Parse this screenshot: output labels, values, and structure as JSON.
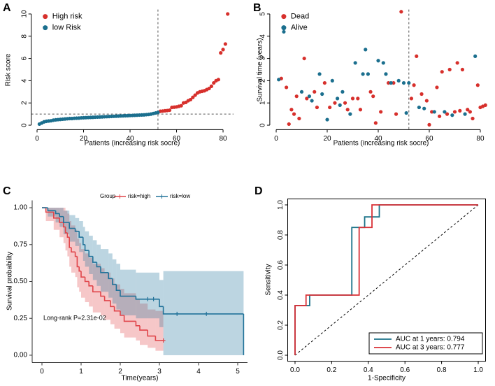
{
  "chart_data": [
    {
      "type": "scatter",
      "label": "A",
      "xlabel": "Patients (increasing risk socre)",
      "ylabel": "Risk score",
      "xlim": [
        -2.5,
        84.5
      ],
      "ylim": [
        -0.4,
        10.4
      ],
      "xticks": [
        0,
        20,
        40,
        60,
        80
      ],
      "yticks": [
        0,
        2,
        4,
        6,
        8,
        10
      ],
      "vline": 52,
      "hline": 1.0,
      "legend": "top-left",
      "series": [
        {
          "name": "High risk",
          "color": "#d7302c",
          "x": [
            53,
            54,
            55,
            56,
            57,
            58,
            59,
            60,
            61,
            62,
            63,
            64,
            65,
            66,
            67,
            68,
            69,
            70,
            71,
            72,
            73,
            74,
            75,
            76,
            77,
            78,
            79,
            80,
            81,
            82
          ],
          "values": [
            1.25,
            1.27,
            1.3,
            1.32,
            1.35,
            1.6,
            1.62,
            1.65,
            1.7,
            1.75,
            2.0,
            2.05,
            2.2,
            2.3,
            2.5,
            2.7,
            2.9,
            3.0,
            3.05,
            3.1,
            3.2,
            3.3,
            3.5,
            3.8,
            4.0,
            4.1,
            6.5,
            6.8,
            7.3,
            10
          ]
        },
        {
          "name": "low Risk",
          "color": "#1b6f8e",
          "x": [
            1,
            2,
            3,
            4,
            5,
            6,
            7,
            8,
            9,
            10,
            11,
            12,
            13,
            14,
            15,
            16,
            17,
            18,
            19,
            20,
            21,
            22,
            23,
            24,
            25,
            26,
            27,
            28,
            29,
            30,
            31,
            32,
            33,
            34,
            35,
            36,
            37,
            38,
            39,
            40,
            41,
            42,
            43,
            44,
            45,
            46,
            47,
            48,
            49,
            50,
            51,
            52
          ],
          "values": [
            0.1,
            0.2,
            0.3,
            0.35,
            0.38,
            0.4,
            0.45,
            0.48,
            0.5,
            0.52,
            0.54,
            0.56,
            0.58,
            0.6,
            0.6,
            0.62,
            0.63,
            0.64,
            0.66,
            0.67,
            0.68,
            0.69,
            0.7,
            0.71,
            0.72,
            0.73,
            0.74,
            0.75,
            0.76,
            0.77,
            0.78,
            0.79,
            0.8,
            0.81,
            0.82,
            0.83,
            0.84,
            0.85,
            0.86,
            0.87,
            0.88,
            0.89,
            0.9,
            0.91,
            0.92,
            0.93,
            0.95,
            0.97,
            1.0,
            1.05,
            1.1,
            1.15
          ]
        }
      ]
    },
    {
      "type": "scatter",
      "label": "B",
      "xlabel": "Patients (increasing risk socre)",
      "ylabel": "Survival time (years)",
      "xlim": [
        -2.5,
        84.5
      ],
      "ylim": [
        -0.2,
        5.2
      ],
      "xticks": [
        0,
        20,
        40,
        60,
        80
      ],
      "yticks": [
        0,
        1,
        2,
        3,
        4,
        5
      ],
      "vline": 52,
      "legend": "top-left",
      "series": [
        {
          "name": "Dead",
          "color": "#d7302c",
          "x": [
            2,
            4,
            5,
            6,
            7,
            8,
            9,
            11,
            12,
            15,
            16,
            19,
            21,
            23,
            27,
            28,
            30,
            32,
            33,
            37,
            38,
            39,
            41,
            44,
            46,
            47,
            49,
            53,
            54,
            55,
            57,
            59,
            60,
            61,
            63,
            64,
            65,
            67,
            68,
            70,
            71,
            72,
            73,
            75,
            76,
            77,
            79,
            80,
            81,
            82
          ],
          "values": [
            2.1,
            1.7,
            0.05,
            0.7,
            0.5,
            1.3,
            0.3,
            3.0,
            1.2,
            1.5,
            0.8,
            1.9,
            0.8,
            1.0,
            1.0,
            0.7,
            1.2,
            1.2,
            0.7,
            1.5,
            1.3,
            0.1,
            0.6,
            1.9,
            1.9,
            0.5,
            5.1,
            1.2,
            1.8,
            3.1,
            1.4,
            1.1,
            0.02,
            0.6,
            1.7,
            0.4,
            2.4,
            0.5,
            2.5,
            0.6,
            2.8,
            0.65,
            2.5,
            0.7,
            0.6,
            0.3,
            1.8,
            0.8,
            0.85,
            0.9
          ]
        },
        {
          "name": "Alive",
          "color": "#1b6f8e",
          "x": [
            1,
            3,
            10,
            13,
            14,
            17,
            18,
            20,
            22,
            24,
            25,
            26,
            29,
            31,
            34,
            35,
            36,
            40,
            42,
            43,
            45,
            48,
            50,
            51,
            52,
            56,
            58,
            62,
            66,
            69,
            74,
            78
          ],
          "values": [
            2.05,
            4.2,
            1.5,
            1.3,
            1.1,
            2.3,
            1.4,
            0.25,
            2.0,
            1.2,
            0.9,
            1.5,
            0.5,
            2.8,
            2.3,
            3.4,
            2.3,
            2.9,
            2.8,
            2.3,
            1.9,
            2.0,
            1.9,
            0.55,
            1.9,
            0.8,
            0.75,
            0.6,
            0.6,
            0.45,
            0.5,
            3.1
          ]
        }
      ]
    },
    {
      "type": "km",
      "label": "C",
      "xlabel": "Time(years)",
      "ylabel": "Survival probability",
      "legend_title": "Group",
      "annotation": "Long-rank P=2.31e-02",
      "xlim": [
        -0.25,
        5.25
      ],
      "ylim": [
        -0.05,
        1.05
      ],
      "xticks": [
        0,
        1,
        2,
        3,
        4,
        5
      ],
      "yticks": [
        {
          "value": 0,
          "label": "0.00"
        },
        0.25,
        {
          "value": 0.5,
          "label": "0.50"
        },
        0.75,
        {
          "value": 1,
          "label": "1.00"
        }
      ],
      "series": [
        {
          "name": "risk=high",
          "color": "#e0454a",
          "x": [
            0,
            0.1,
            0.3,
            0.45,
            0.55,
            0.6,
            0.65,
            0.7,
            0.75,
            0.85,
            0.9,
            0.95,
            1.0,
            1.1,
            1.2,
            1.3,
            1.5,
            1.6,
            1.75,
            1.85,
            2.0,
            2.1,
            2.4,
            2.5,
            2.7,
            2.9,
            3.1
          ],
          "values": [
            1,
            0.97,
            0.93,
            0.9,
            0.87,
            0.83,
            0.8,
            0.73,
            0.7,
            0.67,
            0.6,
            0.57,
            0.53,
            0.5,
            0.47,
            0.43,
            0.4,
            0.37,
            0.33,
            0.3,
            0.27,
            0.23,
            0.2,
            0.17,
            0.13,
            0.1,
            0.1
          ],
          "lower": [
            1,
            0.91,
            0.85,
            0.8,
            0.76,
            0.71,
            0.67,
            0.6,
            0.56,
            0.53,
            0.46,
            0.43,
            0.39,
            0.36,
            0.33,
            0.29,
            0.27,
            0.24,
            0.21,
            0.18,
            0.15,
            0.12,
            0.1,
            0.07,
            0.05,
            0.03,
            0.03
          ],
          "upper": [
            1,
            1,
            1,
            1,
            1,
            0.98,
            0.96,
            0.91,
            0.88,
            0.85,
            0.79,
            0.76,
            0.72,
            0.69,
            0.66,
            0.62,
            0.59,
            0.56,
            0.52,
            0.48,
            0.45,
            0.42,
            0.38,
            0.35,
            0.31,
            0.3,
            0.3
          ],
          "censor_x": [
            3.1
          ],
          "censor_values": [
            0.1
          ]
        },
        {
          "name": "risk=low",
          "color": "#22739a",
          "x": [
            0,
            0.15,
            0.35,
            0.45,
            0.55,
            0.7,
            0.85,
            0.95,
            1.05,
            1.1,
            1.2,
            1.3,
            1.4,
            1.5,
            1.7,
            1.8,
            1.9,
            2.0,
            2.4,
            3.0,
            3.1,
            5.15
          ],
          "values": [
            1,
            0.98,
            0.96,
            0.94,
            0.9,
            0.86,
            0.84,
            0.8,
            0.75,
            0.71,
            0.67,
            0.63,
            0.6,
            0.56,
            0.52,
            0.48,
            0.44,
            0.4,
            0.38,
            0.33,
            0.28,
            0
          ],
          "lower": [
            1,
            0.94,
            0.9,
            0.87,
            0.82,
            0.77,
            0.74,
            0.7,
            0.64,
            0.6,
            0.55,
            0.51,
            0.47,
            0.43,
            0.39,
            0.35,
            0.31,
            0.27,
            0.25,
            0.19,
            0,
            0
          ],
          "upper": [
            1,
            1,
            1,
            1,
            0.98,
            0.95,
            0.93,
            0.91,
            0.87,
            0.84,
            0.81,
            0.78,
            0.75,
            0.72,
            0.69,
            0.65,
            0.62,
            0.58,
            0.56,
            0.51,
            0.57,
            0
          ],
          "censor_x": [
            2.7,
            2.85,
            3.45,
            4.2
          ],
          "censor_values": [
            0.38,
            0.38,
            0.28,
            0.28
          ]
        }
      ]
    },
    {
      "type": "roc",
      "label": "D",
      "xlabel": "1-Specificity",
      "ylabel": "Sensitivity",
      "legend": "bottom-right",
      "xlim": [
        -0.04,
        1.04
      ],
      "ylim": [
        -0.04,
        1.04
      ],
      "xticks": [
        {
          "value": 0,
          "label": "0.0"
        },
        0.2,
        0.4,
        0.6,
        0.8,
        {
          "value": 1,
          "label": "1.0"
        }
      ],
      "yticks": [
        {
          "value": 0,
          "label": "0.0"
        },
        0.2,
        0.4,
        0.6,
        0.8,
        {
          "value": 1,
          "label": "1.0"
        }
      ],
      "series": [
        {
          "name": "AUC at 1 years: 0.794",
          "color": "#1b7389",
          "x": [
            0,
            0,
            0.08,
            0.08,
            0.31,
            0.31,
            0.38,
            0.38,
            0.46,
            0.46,
            1
          ],
          "values": [
            0,
            0.33,
            0.33,
            0.4,
            0.4,
            0.85,
            0.85,
            0.92,
            0.92,
            1,
            1
          ]
        },
        {
          "name": "AUC at 3 years: 0.777",
          "color": "#d93036",
          "x": [
            0,
            0,
            0.06,
            0.06,
            0.35,
            0.35,
            0.42,
            0.42,
            1
          ],
          "values": [
            0,
            0.33,
            0.33,
            0.4,
            0.4,
            0.85,
            0.85,
            1,
            1
          ]
        }
      ]
    }
  ]
}
